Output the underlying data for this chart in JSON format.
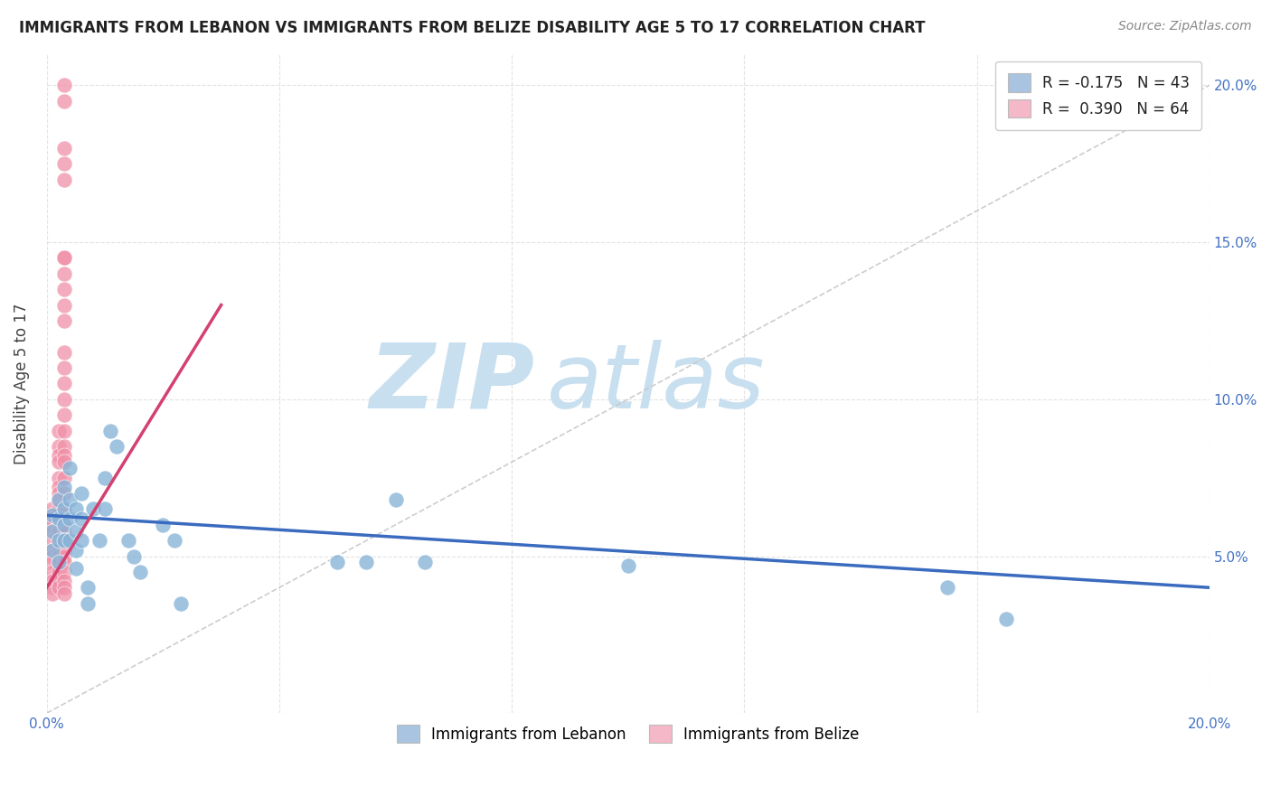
{
  "title": "IMMIGRANTS FROM LEBANON VS IMMIGRANTS FROM BELIZE DISABILITY AGE 5 TO 17 CORRELATION CHART",
  "source": "Source: ZipAtlas.com",
  "ylabel": "Disability Age 5 to 17",
  "xlim": [
    0.0,
    0.2
  ],
  "ylim": [
    0.0,
    0.21
  ],
  "legend_blue_label": "R = -0.175   N = 43",
  "legend_pink_label": "R =  0.390   N = 64",
  "legend_blue_color": "#a8c4e0",
  "legend_pink_color": "#f4b8c8",
  "blue_line_color": "#3a6bbf",
  "pink_line_color": "#d44070",
  "diagonal_line_color": "#c8c8c8",
  "watermark_zip": "ZIP",
  "watermark_atlas": "atlas",
  "watermark_color": "#c8dff0",
  "blue_dot_color": "#88b4d8",
  "pink_dot_color": "#f090a8",
  "blue_scatter_x": [
    0.001,
    0.001,
    0.001,
    0.002,
    0.002,
    0.002,
    0.002,
    0.003,
    0.003,
    0.003,
    0.003,
    0.004,
    0.004,
    0.004,
    0.004,
    0.005,
    0.005,
    0.005,
    0.005,
    0.006,
    0.006,
    0.006,
    0.007,
    0.007,
    0.008,
    0.009,
    0.01,
    0.01,
    0.011,
    0.012,
    0.014,
    0.015,
    0.016,
    0.02,
    0.022,
    0.023,
    0.05,
    0.055,
    0.06,
    0.065,
    0.1,
    0.155,
    0.165
  ],
  "blue_scatter_y": [
    0.063,
    0.058,
    0.052,
    0.068,
    0.062,
    0.055,
    0.048,
    0.072,
    0.065,
    0.06,
    0.055,
    0.078,
    0.068,
    0.062,
    0.055,
    0.065,
    0.058,
    0.052,
    0.046,
    0.07,
    0.062,
    0.055,
    0.04,
    0.035,
    0.065,
    0.055,
    0.075,
    0.065,
    0.09,
    0.085,
    0.055,
    0.05,
    0.045,
    0.06,
    0.055,
    0.035,
    0.048,
    0.048,
    0.068,
    0.048,
    0.047,
    0.04,
    0.03
  ],
  "pink_scatter_x": [
    0.001,
    0.001,
    0.001,
    0.001,
    0.001,
    0.001,
    0.001,
    0.001,
    0.001,
    0.001,
    0.001,
    0.001,
    0.002,
    0.002,
    0.002,
    0.002,
    0.002,
    0.002,
    0.002,
    0.002,
    0.002,
    0.002,
    0.002,
    0.002,
    0.002,
    0.002,
    0.002,
    0.002,
    0.002,
    0.002,
    0.002,
    0.003,
    0.003,
    0.003,
    0.003,
    0.003,
    0.003,
    0.003,
    0.003,
    0.003,
    0.003,
    0.003,
    0.003,
    0.003,
    0.003,
    0.003,
    0.003,
    0.003,
    0.003,
    0.003,
    0.003,
    0.003,
    0.003,
    0.003,
    0.003,
    0.003,
    0.003,
    0.003,
    0.003,
    0.003,
    0.003,
    0.003,
    0.003,
    0.003
  ],
  "pink_scatter_y": [
    0.065,
    0.062,
    0.06,
    0.058,
    0.055,
    0.052,
    0.05,
    0.048,
    0.045,
    0.042,
    0.04,
    0.038,
    0.09,
    0.085,
    0.082,
    0.08,
    0.075,
    0.072,
    0.07,
    0.068,
    0.065,
    0.062,
    0.06,
    0.058,
    0.055,
    0.052,
    0.05,
    0.048,
    0.045,
    0.042,
    0.04,
    0.145,
    0.14,
    0.135,
    0.13,
    0.125,
    0.115,
    0.11,
    0.105,
    0.1,
    0.095,
    0.09,
    0.085,
    0.082,
    0.08,
    0.075,
    0.07,
    0.065,
    0.06,
    0.058,
    0.055,
    0.052,
    0.05,
    0.048,
    0.045,
    0.042,
    0.04,
    0.038,
    0.17,
    0.175,
    0.18,
    0.195,
    0.2,
    0.145
  ],
  "blue_line_x0": 0.0,
  "blue_line_x1": 0.2,
  "blue_line_y0": 0.063,
  "blue_line_y1": 0.04,
  "pink_line_x0": 0.0,
  "pink_line_x1": 0.03,
  "pink_line_y0": 0.04,
  "pink_line_y1": 0.13,
  "bottom_legend_blue_label": "Immigrants from Lebanon",
  "bottom_legend_pink_label": "Immigrants from Belize"
}
